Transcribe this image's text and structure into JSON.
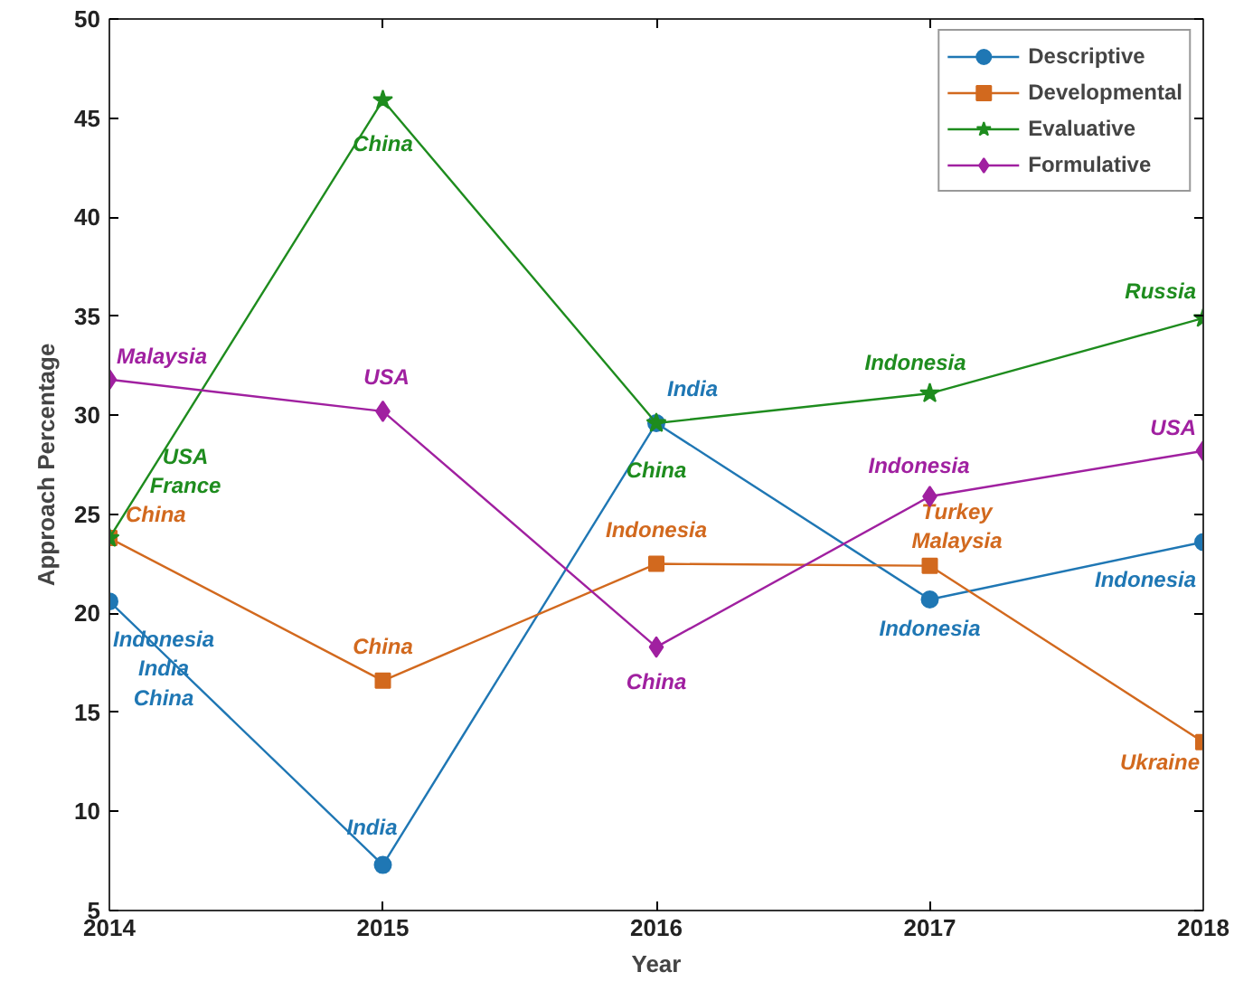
{
  "chart_data": {
    "type": "line",
    "xlabel": "Year",
    "ylabel": "Approach Percentage",
    "x": [
      2014,
      2015,
      2016,
      2017,
      2018
    ],
    "xlim": [
      2014,
      2018
    ],
    "xticks": [
      2014,
      2015,
      2016,
      2017,
      2018
    ],
    "ylim": [
      5,
      50
    ],
    "yticks": [
      5,
      10,
      15,
      20,
      25,
      30,
      35,
      40,
      45,
      50
    ],
    "grid": false,
    "legend": "top right",
    "line_style": "solid",
    "series": [
      {
        "name": "Descriptive",
        "color": "#1f77b4",
        "marker": "circle",
        "values": [
          20.6,
          7.3,
          29.6,
          20.7,
          23.6
        ],
        "value_labels": [
          "Indonesia\nIndia\nChina",
          "India",
          "India",
          "Indonesia",
          "Indonesia"
        ]
      },
      {
        "name": "Developmental",
        "color": "#d2691e",
        "marker": "square",
        "values": [
          23.8,
          16.6,
          22.5,
          22.4,
          13.5
        ],
        "value_labels": [
          "China",
          "China",
          "Indonesia",
          "Turkey\nMalaysia",
          "Ukraine"
        ]
      },
      {
        "name": "Evaluative",
        "color": "#1e8c1e",
        "marker": "star",
        "values": [
          23.8,
          45.9,
          29.6,
          31.1,
          34.9
        ],
        "value_labels": [
          "USA\nFrance",
          "China",
          "China",
          "Indonesia",
          "Russia"
        ]
      },
      {
        "name": "Formulative",
        "color": "#a020a0",
        "marker": "diamond",
        "values": [
          31.8,
          30.2,
          18.3,
          25.9,
          28.2
        ],
        "value_labels": [
          "Malaysia",
          "USA",
          "China",
          "Indonesia",
          "USA"
        ]
      }
    ]
  }
}
